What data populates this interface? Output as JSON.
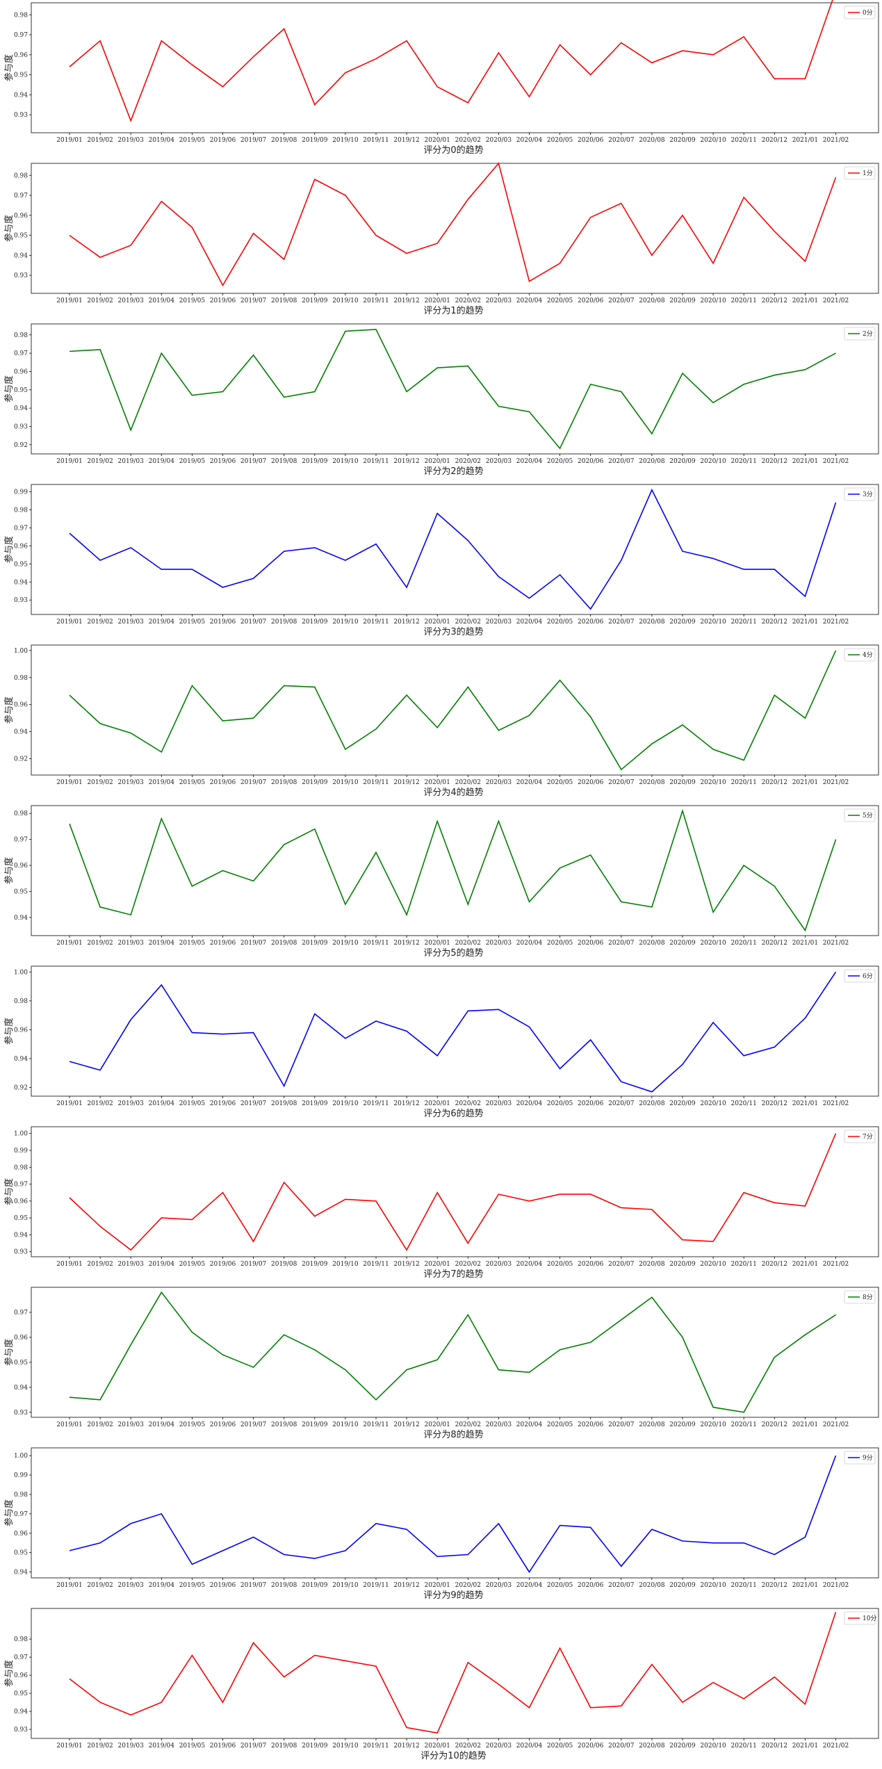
{
  "chart_data": [
    {
      "type": "line",
      "xlabel": "评分为0的趋势",
      "ylabel": "参与度",
      "legend": "0分",
      "color": "#ff0000",
      "x": [
        "2019/01",
        "2019/02",
        "2019/03",
        "2019/04",
        "2019/05",
        "2019/06",
        "2019/07",
        "2019/08",
        "2019/09",
        "2019/10",
        "2019/11",
        "2019/12",
        "2020/01",
        "2020/02",
        "2020/03",
        "2020/04",
        "2020/05",
        "2020/06",
        "2020/07",
        "2020/08",
        "2020/09",
        "2020/10",
        "2020/11",
        "2020/12",
        "2021/01",
        "2021/02"
      ],
      "values": [
        0.954,
        0.967,
        0.927,
        0.967,
        0.955,
        0.944,
        0.959,
        0.973,
        0.935,
        0.951,
        0.958,
        0.967,
        0.944,
        0.936,
        0.961,
        0.939,
        0.965,
        0.95,
        0.966,
        0.956,
        0.962,
        0.96,
        0.969,
        0.948,
        0.948,
        0.992
      ],
      "yticks": [
        0.93,
        0.94,
        0.95,
        0.96,
        0.97,
        0.98
      ],
      "ytick_labels": [
        "0.93",
        "0.94",
        "0.95",
        "0.96",
        "0.97",
        "0.98"
      ],
      "ylim": [
        0.921,
        0.986
      ],
      "legend_position": "top-right"
    },
    {
      "type": "line",
      "xlabel": "评分为1的趋势",
      "ylabel": "参与度",
      "legend": "1分",
      "color": "#ff0000",
      "x": [
        "2019/01",
        "2019/02",
        "2019/03",
        "2019/04",
        "2019/05",
        "2019/06",
        "2019/07",
        "2019/08",
        "2019/09",
        "2019/10",
        "2019/11",
        "2019/12",
        "2020/01",
        "2020/02",
        "2020/03",
        "2020/04",
        "2020/05",
        "2020/06",
        "2020/07",
        "2020/08",
        "2020/09",
        "2020/10",
        "2020/11",
        "2020/12",
        "2021/01",
        "2021/02"
      ],
      "values": [
        0.95,
        0.939,
        0.945,
        0.967,
        0.954,
        0.925,
        0.951,
        0.938,
        0.978,
        0.97,
        0.95,
        0.941,
        0.946,
        0.968,
        0.986,
        0.927,
        0.936,
        0.959,
        0.966,
        0.94,
        0.96,
        0.936,
        0.969,
        0.952,
        0.937,
        0.979
      ],
      "yticks": [
        0.93,
        0.94,
        0.95,
        0.96,
        0.97,
        0.98
      ],
      "ytick_labels": [
        "0.93",
        "0.94",
        "0.95",
        "0.96",
        "0.97",
        "0.98"
      ],
      "ylim": [
        0.921,
        0.986
      ],
      "legend_position": "top-right"
    },
    {
      "type": "line",
      "xlabel": "评分为2的趋势",
      "ylabel": "参与度",
      "legend": "2分",
      "color": "#008000",
      "x": [
        "2019/01",
        "2019/02",
        "2019/03",
        "2019/04",
        "2019/05",
        "2019/06",
        "2019/07",
        "2019/08",
        "2019/09",
        "2019/10",
        "2019/11",
        "2019/12",
        "2020/01",
        "2020/02",
        "2020/03",
        "2020/04",
        "2020/05",
        "2020/06",
        "2020/07",
        "2020/08",
        "2020/09",
        "2020/10",
        "2020/11",
        "2020/12",
        "2021/01",
        "2021/02"
      ],
      "values": [
        0.971,
        0.972,
        0.928,
        0.97,
        0.947,
        0.949,
        0.969,
        0.946,
        0.949,
        0.982,
        0.983,
        0.949,
        0.962,
        0.963,
        0.941,
        0.938,
        0.918,
        0.953,
        0.949,
        0.926,
        0.959,
        0.943,
        0.953,
        0.958,
        0.961,
        0.97
      ],
      "yticks": [
        0.92,
        0.93,
        0.94,
        0.95,
        0.96,
        0.97,
        0.98
      ],
      "ytick_labels": [
        "0.92",
        "0.93",
        "0.94",
        "0.95",
        "0.96",
        "0.97",
        "0.98"
      ],
      "ylim": [
        0.915,
        0.986
      ],
      "legend_position": "top-right"
    },
    {
      "type": "line",
      "xlabel": "评分为3的趋势",
      "ylabel": "参与度",
      "legend": "3分",
      "color": "#0000ff",
      "x": [
        "2019/01",
        "2019/02",
        "2019/03",
        "2019/04",
        "2019/05",
        "2019/06",
        "2019/07",
        "2019/08",
        "2019/09",
        "2019/10",
        "2019/11",
        "2019/12",
        "2020/01",
        "2020/02",
        "2020/03",
        "2020/04",
        "2020/05",
        "2020/06",
        "2020/07",
        "2020/08",
        "2020/09",
        "2020/10",
        "2020/11",
        "2020/12",
        "2021/01",
        "2021/02"
      ],
      "values": [
        0.967,
        0.952,
        0.959,
        0.947,
        0.947,
        0.937,
        0.942,
        0.957,
        0.959,
        0.952,
        0.961,
        0.937,
        0.978,
        0.963,
        0.943,
        0.931,
        0.944,
        0.925,
        0.952,
        0.991,
        0.957,
        0.953,
        0.947,
        0.947,
        0.932,
        0.984
      ],
      "yticks": [
        0.93,
        0.94,
        0.95,
        0.96,
        0.97,
        0.98,
        0.99
      ],
      "ytick_labels": [
        "0.93",
        "0.94",
        "0.95",
        "0.96",
        "0.97",
        "0.98",
        "0.99"
      ],
      "ylim": [
        0.922,
        0.994
      ],
      "legend_position": "top-right"
    },
    {
      "type": "line",
      "xlabel": "评分为4的趋势",
      "ylabel": "参与度",
      "legend": "4分",
      "color": "#008000",
      "x": [
        "2019/01",
        "2019/02",
        "2019/03",
        "2019/04",
        "2019/05",
        "2019/06",
        "2019/07",
        "2019/08",
        "2019/09",
        "2019/10",
        "2019/11",
        "2019/12",
        "2020/01",
        "2020/02",
        "2020/03",
        "2020/04",
        "2020/05",
        "2020/06",
        "2020/07",
        "2020/08",
        "2020/09",
        "2020/10",
        "2020/11",
        "2020/12",
        "2021/01",
        "2021/02"
      ],
      "values": [
        0.967,
        0.946,
        0.939,
        0.925,
        0.974,
        0.948,
        0.95,
        0.974,
        0.973,
        0.927,
        0.942,
        0.967,
        0.943,
        0.973,
        0.941,
        0.952,
        0.978,
        0.951,
        0.912,
        0.931,
        0.945,
        0.927,
        0.919,
        0.967,
        0.95,
        1.0
      ],
      "yticks": [
        0.92,
        0.94,
        0.96,
        0.98,
        1.0
      ],
      "ytick_labels": [
        "0.92",
        "0.94",
        "0.96",
        "0.98",
        "1.00"
      ],
      "ylim": [
        0.908,
        1.004
      ],
      "legend_position": "top-right"
    },
    {
      "type": "line",
      "xlabel": "评分为5的趋势",
      "ylabel": "参与度",
      "legend": "5分",
      "color": "#008000",
      "x": [
        "2019/01",
        "2019/02",
        "2019/03",
        "2019/04",
        "2019/05",
        "2019/06",
        "2019/07",
        "2019/08",
        "2019/09",
        "2019/10",
        "2019/11",
        "2019/12",
        "2020/01",
        "2020/02",
        "2020/03",
        "2020/04",
        "2020/05",
        "2020/06",
        "2020/07",
        "2020/08",
        "2020/09",
        "2020/10",
        "2020/11",
        "2020/12",
        "2021/01",
        "2021/02"
      ],
      "values": [
        0.976,
        0.944,
        0.941,
        0.978,
        0.952,
        0.958,
        0.954,
        0.968,
        0.974,
        0.945,
        0.965,
        0.941,
        0.977,
        0.945,
        0.977,
        0.946,
        0.959,
        0.964,
        0.946,
        0.944,
        0.981,
        0.942,
        0.96,
        0.952,
        0.935,
        0.97
      ],
      "yticks": [
        0.94,
        0.95,
        0.96,
        0.97,
        0.98
      ],
      "ytick_labels": [
        "0.94",
        "0.95",
        "0.96",
        "0.97",
        "0.98"
      ],
      "ylim": [
        0.933,
        0.983
      ],
      "legend_position": "top-right"
    },
    {
      "type": "line",
      "xlabel": "评分为6的趋势",
      "ylabel": "参与度",
      "legend": "6分",
      "color": "#0000ff",
      "x": [
        "2019/01",
        "2019/02",
        "2019/03",
        "2019/04",
        "2019/05",
        "2019/06",
        "2019/07",
        "2019/08",
        "2019/09",
        "2019/10",
        "2019/11",
        "2019/12",
        "2020/01",
        "2020/02",
        "2020/03",
        "2020/04",
        "2020/05",
        "2020/06",
        "2020/07",
        "2020/08",
        "2020/09",
        "2020/10",
        "2020/11",
        "2020/12",
        "2021/01",
        "2021/02"
      ],
      "values": [
        0.938,
        0.932,
        0.967,
        0.991,
        0.958,
        0.957,
        0.958,
        0.921,
        0.971,
        0.954,
        0.966,
        0.959,
        0.942,
        0.973,
        0.974,
        0.962,
        0.933,
        0.953,
        0.924,
        0.917,
        0.936,
        0.965,
        0.942,
        0.948,
        0.968,
        1.0
      ],
      "yticks": [
        0.92,
        0.94,
        0.96,
        0.98,
        1.0
      ],
      "ytick_labels": [
        "0.92",
        "0.94",
        "0.96",
        "0.98",
        "1.00"
      ],
      "ylim": [
        0.914,
        1.004
      ],
      "legend_position": "top-right"
    },
    {
      "type": "line",
      "xlabel": "评分为7的趋势",
      "ylabel": "参与度",
      "legend": "7分",
      "color": "#ff0000",
      "x": [
        "2019/01",
        "2019/02",
        "2019/03",
        "2019/04",
        "2019/05",
        "2019/06",
        "2019/07",
        "2019/08",
        "2019/09",
        "2019/10",
        "2019/11",
        "2019/12",
        "2020/01",
        "2020/02",
        "2020/03",
        "2020/04",
        "2020/05",
        "2020/06",
        "2020/07",
        "2020/08",
        "2020/09",
        "2020/10",
        "2020/11",
        "2020/12",
        "2021/01",
        "2021/02"
      ],
      "values": [
        0.962,
        0.945,
        0.931,
        0.95,
        0.949,
        0.965,
        0.936,
        0.971,
        0.951,
        0.961,
        0.96,
        0.931,
        0.965,
        0.935,
        0.964,
        0.96,
        0.964,
        0.964,
        0.956,
        0.955,
        0.937,
        0.936,
        0.965,
        0.959,
        0.957,
        1.0
      ],
      "yticks": [
        0.93,
        0.94,
        0.95,
        0.96,
        0.97,
        0.98,
        0.99,
        1.0
      ],
      "ytick_labels": [
        "0.93",
        "0.94",
        "0.95",
        "0.96",
        "0.97",
        "0.98",
        "0.99",
        "1.00"
      ],
      "ylim": [
        0.927,
        1.004
      ],
      "legend_position": "top-right"
    },
    {
      "type": "line",
      "xlabel": "评分为8的趋势",
      "ylabel": "参与度",
      "legend": "8分",
      "color": "#008000",
      "x": [
        "2019/01",
        "2019/02",
        "2019/03",
        "2019/04",
        "2019/05",
        "2019/06",
        "2019/07",
        "2019/08",
        "2019/09",
        "2019/10",
        "2019/11",
        "2019/12",
        "2020/01",
        "2020/02",
        "2020/03",
        "2020/04",
        "2020/05",
        "2020/06",
        "2020/07",
        "2020/08",
        "2020/09",
        "2020/10",
        "2020/11",
        "2020/12",
        "2021/01",
        "2021/02"
      ],
      "values": [
        0.936,
        0.935,
        0.957,
        0.978,
        0.962,
        0.953,
        0.948,
        0.961,
        0.955,
        0.947,
        0.935,
        0.947,
        0.951,
        0.969,
        0.947,
        0.946,
        0.955,
        0.958,
        0.967,
        0.976,
        0.96,
        0.932,
        0.93,
        0.952,
        0.961,
        0.969
      ],
      "yticks": [
        0.93,
        0.94,
        0.95,
        0.96,
        0.97
      ],
      "ytick_labels": [
        "0.93",
        "0.94",
        "0.95",
        "0.96",
        "0.97"
      ],
      "ylim": [
        0.928,
        0.98
      ],
      "legend_position": "top-right"
    },
    {
      "type": "line",
      "xlabel": "评分为9的趋势",
      "ylabel": "参与度",
      "legend": "9分",
      "color": "#0000ff",
      "x": [
        "2019/01",
        "2019/02",
        "2019/03",
        "2019/04",
        "2019/05",
        "2019/06",
        "2019/07",
        "2019/08",
        "2019/09",
        "2019/10",
        "2019/11",
        "2019/12",
        "2020/01",
        "2020/02",
        "2020/03",
        "2020/04",
        "2020/05",
        "2020/06",
        "2020/07",
        "2020/08",
        "2020/09",
        "2020/10",
        "2020/11",
        "2020/12",
        "2021/01",
        "2021/02"
      ],
      "values": [
        0.951,
        0.955,
        0.965,
        0.97,
        0.944,
        0.951,
        0.958,
        0.949,
        0.947,
        0.951,
        0.965,
        0.962,
        0.948,
        0.949,
        0.965,
        0.94,
        0.964,
        0.963,
        0.943,
        0.962,
        0.956,
        0.955,
        0.955,
        0.949,
        0.958,
        1.0
      ],
      "yticks": [
        0.94,
        0.95,
        0.96,
        0.97,
        0.98,
        0.99,
        1.0
      ],
      "ytick_labels": [
        "0.94",
        "0.95",
        "0.96",
        "0.97",
        "0.98",
        "0.99",
        "1.00"
      ],
      "ylim": [
        0.937,
        1.004
      ],
      "legend_position": "top-right"
    },
    {
      "type": "line",
      "xlabel": "评分为10的趋势",
      "ylabel": "参与度",
      "legend": "10分",
      "color": "#ff0000",
      "x": [
        "2019/01",
        "2019/02",
        "2019/03",
        "2019/04",
        "2019/05",
        "2019/06",
        "2019/07",
        "2019/08",
        "2019/09",
        "2019/10",
        "2019/11",
        "2019/12",
        "2020/01",
        "2020/02",
        "2020/03",
        "2020/04",
        "2020/05",
        "2020/06",
        "2020/07",
        "2020/08",
        "2020/09",
        "2020/10",
        "2020/11",
        "2020/12",
        "2021/01",
        "2021/02"
      ],
      "values": [
        0.958,
        0.945,
        0.938,
        0.945,
        0.971,
        0.945,
        0.978,
        0.959,
        0.971,
        0.968,
        0.965,
        0.931,
        0.928,
        0.967,
        0.955,
        0.942,
        0.975,
        0.942,
        0.943,
        0.966,
        0.945,
        0.956,
        0.947,
        0.959,
        0.944,
        0.995
      ],
      "yticks": [
        0.93,
        0.94,
        0.95,
        0.96,
        0.97,
        0.98
      ],
      "ytick_labels": [
        "0.93",
        "0.94",
        "0.95",
        "0.96",
        "0.97",
        "0.98"
      ],
      "ylim": [
        0.925,
        0.997
      ],
      "legend_position": "top-right"
    }
  ]
}
